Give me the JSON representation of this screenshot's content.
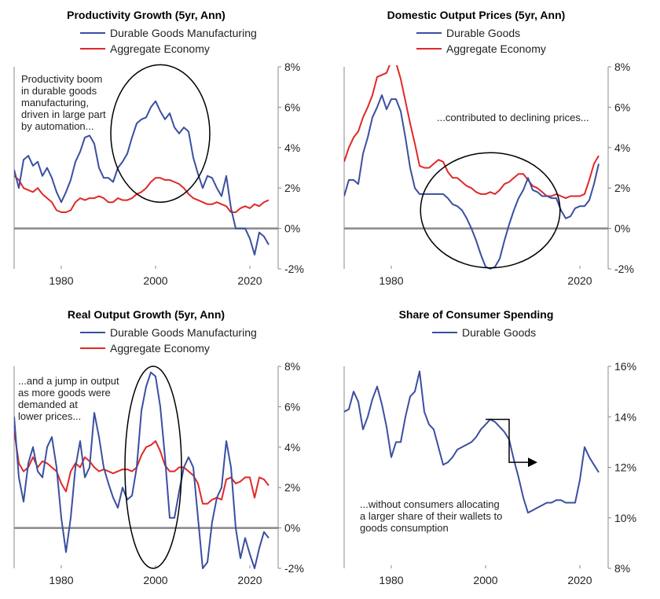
{
  "colors": {
    "blue": "#3a4fa0",
    "red": "#e02828",
    "axis": "#888888",
    "zero": "#888888"
  },
  "chart_data": [
    {
      "type": "line",
      "title": "Productivity Growth (5yr, Ann)",
      "legend": [
        "Durable Goods Manufacturing",
        "Aggregate Economy"
      ],
      "xlim": [
        1970,
        2026
      ],
      "ylim": [
        -2,
        8
      ],
      "x_ticks": [
        1980,
        2000,
        2020
      ],
      "y_ticks": [
        -2,
        0,
        2,
        4,
        6,
        8
      ],
      "y_tick_labels": [
        "-2%",
        "0%",
        "2%",
        "4%",
        "6%",
        "8%"
      ],
      "annotation": "Productivity boom\nin durable goods\nmanufacturing,\ndriven in large part\nby automation...",
      "series": [
        {
          "name": "Durable Goods Manufacturing",
          "color": "blue",
          "x": [
            1970,
            1971,
            1972,
            1973,
            1974,
            1975,
            1976,
            1977,
            1978,
            1979,
            1980,
            1981,
            1982,
            1983,
            1984,
            1985,
            1986,
            1987,
            1988,
            1989,
            1990,
            1991,
            1992,
            1993,
            1994,
            1995,
            1996,
            1997,
            1998,
            1999,
            2000,
            2001,
            2002,
            2003,
            2004,
            2005,
            2006,
            2007,
            2008,
            2009,
            2010,
            2011,
            2012,
            2013,
            2014,
            2015,
            2016,
            2017,
            2018,
            2019,
            2020,
            2021,
            2022,
            2023,
            2024
          ],
          "y": [
            2.9,
            2.0,
            3.4,
            3.6,
            3.1,
            3.3,
            2.6,
            3.0,
            2.5,
            1.8,
            1.3,
            1.8,
            2.4,
            3.3,
            3.8,
            4.5,
            4.6,
            4.2,
            3.0,
            2.5,
            2.5,
            2.3,
            3.0,
            3.3,
            3.7,
            4.5,
            5.2,
            5.4,
            5.5,
            6.0,
            6.3,
            5.8,
            5.4,
            5.7,
            5.0,
            4.7,
            5.0,
            4.8,
            3.5,
            2.7,
            2.0,
            2.6,
            2.5,
            2.0,
            1.6,
            2.6,
            1.0,
            0.0,
            0.0,
            0.0,
            -0.5,
            -1.3,
            -0.2,
            -0.4,
            -0.8
          ]
        },
        {
          "name": "Aggregate Economy",
          "color": "red",
          "x": [
            1970,
            1971,
            1972,
            1973,
            1974,
            1975,
            1976,
            1977,
            1978,
            1979,
            1980,
            1981,
            1982,
            1983,
            1984,
            1985,
            1986,
            1987,
            1988,
            1989,
            1990,
            1991,
            1992,
            1993,
            1994,
            1995,
            1996,
            1997,
            1998,
            1999,
            2000,
            2001,
            2002,
            2003,
            2004,
            2005,
            2006,
            2007,
            2008,
            2009,
            2010,
            2011,
            2012,
            2013,
            2014,
            2015,
            2016,
            2017,
            2018,
            2019,
            2020,
            2021,
            2022,
            2023,
            2024
          ],
          "y": [
            2.6,
            2.4,
            2.0,
            1.9,
            1.8,
            2.0,
            1.7,
            1.5,
            1.3,
            0.9,
            0.8,
            0.8,
            0.9,
            1.3,
            1.5,
            1.4,
            1.5,
            1.5,
            1.6,
            1.5,
            1.3,
            1.3,
            1.5,
            1.4,
            1.4,
            1.5,
            1.7,
            1.8,
            2.0,
            2.3,
            2.5,
            2.5,
            2.4,
            2.4,
            2.3,
            2.2,
            2.0,
            1.7,
            1.5,
            1.4,
            1.3,
            1.2,
            1.2,
            1.3,
            1.2,
            1.1,
            0.8,
            0.8,
            1.0,
            1.1,
            1.0,
            1.2,
            1.1,
            1.3,
            1.4
          ]
        }
      ],
      "circle": {
        "cx": 2001,
        "cy": 4.7,
        "rx": 10.5,
        "ry": 3.4
      }
    },
    {
      "type": "line",
      "title": "Domestic Output Prices (5yr, Ann)",
      "legend": [
        "Durable Goods",
        "Aggregate Economy"
      ],
      "xlim": [
        1970,
        2026
      ],
      "ylim": [
        -2,
        8
      ],
      "x_ticks": [
        1980,
        2020
      ],
      "y_ticks": [
        -2,
        0,
        2,
        4,
        6,
        8
      ],
      "y_tick_labels": [
        "-2%",
        "0%",
        "2%",
        "4%",
        "6%",
        "8%"
      ],
      "annotation": "...contributed to declining prices...",
      "series": [
        {
          "name": "Durable Goods",
          "color": "blue",
          "x": [
            1970,
            1971,
            1972,
            1973,
            1974,
            1975,
            1976,
            1977,
            1978,
            1979,
            1980,
            1981,
            1982,
            1983,
            1984,
            1985,
            1986,
            1987,
            1988,
            1989,
            1990,
            1991,
            1992,
            1993,
            1994,
            1995,
            1996,
            1997,
            1998,
            1999,
            2000,
            2001,
            2002,
            2003,
            2004,
            2005,
            2006,
            2007,
            2008,
            2009,
            2010,
            2011,
            2012,
            2013,
            2014,
            2015,
            2016,
            2017,
            2018,
            2019,
            2020,
            2021,
            2022,
            2023,
            2024
          ],
          "y": [
            1.6,
            2.4,
            2.4,
            2.2,
            3.7,
            4.5,
            5.5,
            6.0,
            6.6,
            5.9,
            6.4,
            6.4,
            5.8,
            4.5,
            3.0,
            2.0,
            1.7,
            1.7,
            1.7,
            1.7,
            1.7,
            1.7,
            1.5,
            1.2,
            1.1,
            0.9,
            0.5,
            0.0,
            -0.6,
            -1.3,
            -1.9,
            -2.0,
            -1.9,
            -1.5,
            -0.6,
            0.2,
            0.9,
            1.5,
            1.9,
            2.5,
            1.9,
            1.8,
            1.6,
            1.6,
            1.5,
            1.5,
            0.9,
            0.5,
            0.6,
            1.0,
            1.1,
            1.1,
            1.4,
            2.2,
            3.2
          ]
        },
        {
          "name": "Aggregate Economy",
          "color": "red",
          "x": [
            1970,
            1971,
            1972,
            1973,
            1974,
            1975,
            1976,
            1977,
            1978,
            1979,
            1980,
            1981,
            1982,
            1983,
            1984,
            1985,
            1986,
            1987,
            1988,
            1989,
            1990,
            1991,
            1992,
            1993,
            1994,
            1995,
            1996,
            1997,
            1998,
            1999,
            2000,
            2001,
            2002,
            2003,
            2004,
            2005,
            2006,
            2007,
            2008,
            2009,
            2010,
            2011,
            2012,
            2013,
            2014,
            2015,
            2016,
            2017,
            2018,
            2019,
            2020,
            2021,
            2022,
            2023,
            2024
          ],
          "y": [
            3.3,
            4.0,
            4.5,
            4.8,
            5.5,
            6.0,
            6.6,
            7.5,
            7.6,
            7.7,
            8.3,
            8.2,
            7.4,
            6.3,
            5.2,
            4.2,
            3.1,
            3.0,
            3.0,
            3.2,
            3.4,
            3.3,
            2.8,
            2.5,
            2.5,
            2.3,
            2.1,
            2.0,
            1.8,
            1.7,
            1.7,
            1.8,
            1.7,
            1.9,
            2.2,
            2.3,
            2.5,
            2.7,
            2.7,
            2.4,
            2.1,
            2.0,
            1.8,
            1.6,
            1.6,
            1.7,
            1.6,
            1.5,
            1.6,
            1.6,
            1.6,
            1.7,
            2.4,
            3.2,
            3.6
          ]
        }
      ],
      "circle": {
        "cx": 2001,
        "cy": 0.9,
        "rx": 14.8,
        "ry": 2.85
      }
    },
    {
      "type": "line",
      "title": "Real Output Growth (5yr, Ann)",
      "legend": [
        "Durable Goods Manufacturing",
        "Aggregate Economy"
      ],
      "xlim": [
        1970,
        2026
      ],
      "ylim": [
        -2,
        8
      ],
      "x_ticks": [
        1980,
        2000,
        2020
      ],
      "y_ticks": [
        -2,
        0,
        2,
        4,
        6,
        8
      ],
      "y_tick_labels": [
        "-2%",
        "0%",
        "2%",
        "4%",
        "6%",
        "8%"
      ],
      "annotation": "...and a jump in output\nas more goods were\ndemanded at\nlower prices...",
      "series": [
        {
          "name": "Durable Goods Manufacturing",
          "color": "blue",
          "x": [
            1970,
            1971,
            1972,
            1973,
            1974,
            1975,
            1976,
            1977,
            1978,
            1979,
            1980,
            1981,
            1982,
            1983,
            1984,
            1985,
            1986,
            1987,
            1988,
            1989,
            1990,
            1991,
            1992,
            1993,
            1994,
            1995,
            1996,
            1997,
            1998,
            1999,
            2000,
            2001,
            2002,
            2003,
            2004,
            2005,
            2006,
            2007,
            2008,
            2009,
            2010,
            2011,
            2012,
            2013,
            2014,
            2015,
            2016,
            2017,
            2018,
            2019,
            2020,
            2021,
            2022,
            2023,
            2024
          ],
          "y": [
            5.5,
            2.5,
            1.3,
            3.2,
            4.0,
            2.8,
            2.5,
            4.0,
            4.5,
            3.0,
            0.5,
            -1.2,
            0.5,
            3.0,
            4.3,
            2.5,
            3.0,
            5.7,
            4.5,
            3.0,
            2.2,
            1.5,
            1.0,
            2.0,
            1.4,
            1.6,
            3.0,
            5.8,
            7.0,
            7.7,
            7.5,
            6.0,
            3.5,
            0.5,
            0.5,
            1.8,
            3.0,
            3.5,
            3.0,
            0.5,
            -2.0,
            -1.7,
            0.3,
            1.5,
            2.0,
            4.3,
            3.0,
            0.0,
            -1.5,
            -0.5,
            -1.3,
            -2.0,
            -1.0,
            -0.2,
            -0.5
          ]
        },
        {
          "name": "Aggregate Economy",
          "color": "red",
          "x": [
            1970,
            1971,
            1972,
            1973,
            1974,
            1975,
            1976,
            1977,
            1978,
            1979,
            1980,
            1981,
            1982,
            1983,
            1984,
            1985,
            1986,
            1987,
            1988,
            1989,
            1990,
            1991,
            1992,
            1993,
            1994,
            1995,
            1996,
            1997,
            1998,
            1999,
            2000,
            2001,
            2002,
            2003,
            2004,
            2005,
            2006,
            2007,
            2008,
            2009,
            2010,
            2011,
            2012,
            2013,
            2014,
            2015,
            2016,
            2017,
            2018,
            2019,
            2020,
            2021,
            2022,
            2023,
            2024
          ],
          "y": [
            4.8,
            3.2,
            2.8,
            3.0,
            3.5,
            3.0,
            3.3,
            3.2,
            3.0,
            2.8,
            2.2,
            1.8,
            2.8,
            3.2,
            3.0,
            3.5,
            3.3,
            3.0,
            2.8,
            2.9,
            2.8,
            2.7,
            2.8,
            2.9,
            2.9,
            2.8,
            3.0,
            3.6,
            4.0,
            4.1,
            4.3,
            3.8,
            3.1,
            2.8,
            2.8,
            3.0,
            3.0,
            2.8,
            2.6,
            2.2,
            1.2,
            1.2,
            1.4,
            1.5,
            1.4,
            2.4,
            2.5,
            2.2,
            2.3,
            2.5,
            2.5,
            1.5,
            2.5,
            2.4,
            2.1
          ]
        }
      ],
      "circle": {
        "cx": 1999.5,
        "cy": 3.0,
        "rx": 6.0,
        "ry": 5.0
      }
    },
    {
      "type": "line",
      "title": "Share of Consumer Spending",
      "legend": [
        "Durable Goods"
      ],
      "xlim": [
        1970,
        2026
      ],
      "ylim": [
        8,
        16
      ],
      "x_ticks": [
        1980,
        2000,
        2020
      ],
      "y_ticks": [
        8,
        10,
        12,
        14,
        16
      ],
      "y_tick_labels": [
        "8%",
        "10%",
        "12%",
        "14%",
        "16%"
      ],
      "annotation": "...without consumers allocating\na larger share of their wallets to\ngoods consumption",
      "series": [
        {
          "name": "Durable Goods",
          "color": "blue",
          "x": [
            1970,
            1971,
            1972,
            1973,
            1974,
            1975,
            1976,
            1977,
            1978,
            1979,
            1980,
            1981,
            1982,
            1983,
            1984,
            1985,
            1986,
            1987,
            1988,
            1989,
            1990,
            1991,
            1992,
            1993,
            1994,
            1995,
            1996,
            1997,
            1998,
            1999,
            2000,
            2001,
            2002,
            2003,
            2004,
            2005,
            2006,
            2007,
            2008,
            2009,
            2010,
            2011,
            2012,
            2013,
            2014,
            2015,
            2016,
            2017,
            2018,
            2019,
            2020,
            2021,
            2022,
            2023,
            2024
          ],
          "y": [
            14.2,
            14.3,
            15.0,
            14.6,
            13.5,
            14.0,
            14.7,
            15.2,
            14.5,
            13.6,
            12.4,
            13.0,
            13.0,
            14.0,
            14.8,
            15.0,
            15.8,
            14.2,
            13.7,
            13.5,
            12.8,
            12.1,
            12.2,
            12.4,
            12.7,
            12.8,
            12.9,
            13.0,
            13.2,
            13.5,
            13.7,
            13.9,
            13.8,
            13.6,
            13.4,
            13.1,
            12.3,
            11.6,
            10.8,
            10.2,
            10.3,
            10.4,
            10.5,
            10.6,
            10.6,
            10.7,
            10.7,
            10.6,
            10.6,
            10.6,
            11.5,
            12.8,
            12.4,
            12.1,
            11.8
          ]
        }
      ],
      "bracket": {
        "x1": 2000,
        "x2": 2005,
        "x3": 2011,
        "y1": 13.9,
        "y2": 12.2
      }
    }
  ]
}
